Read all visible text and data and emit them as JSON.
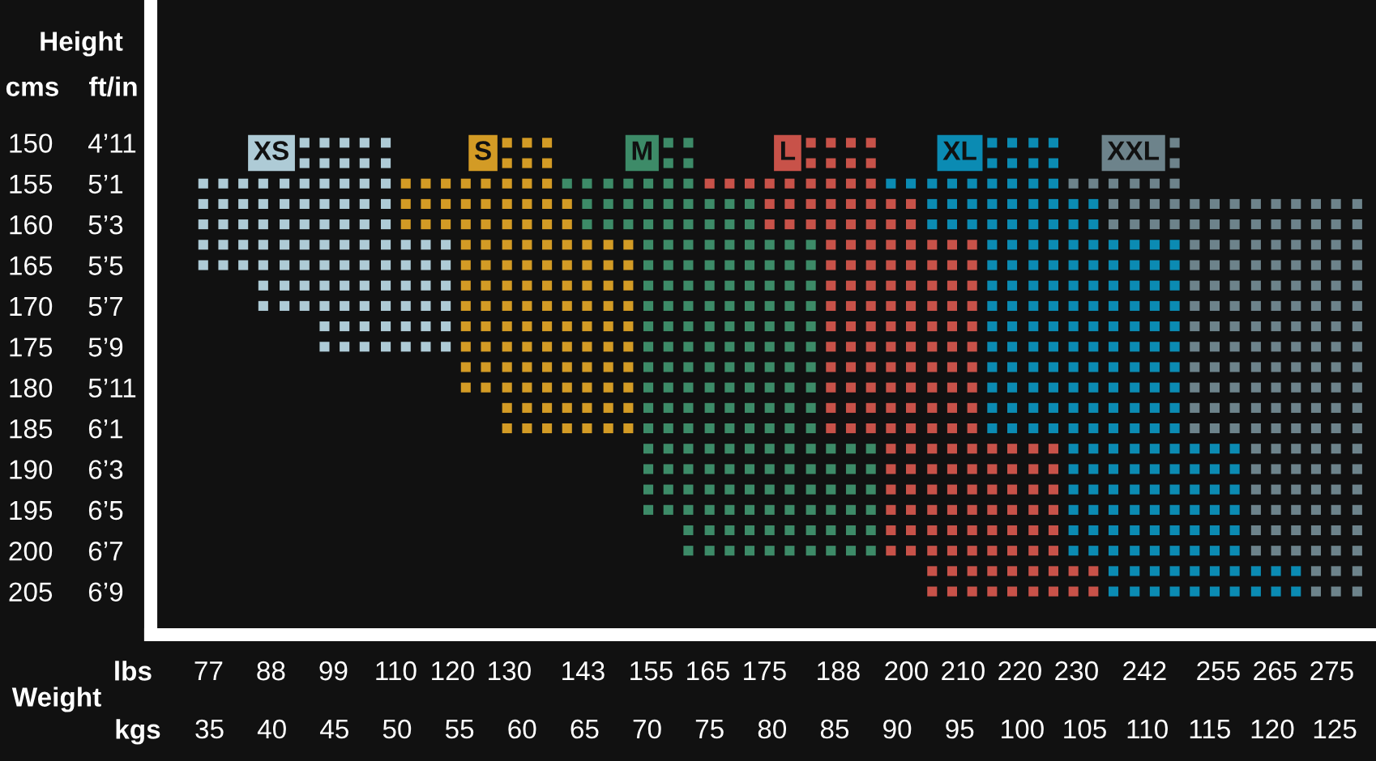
{
  "chart_data": {
    "type": "scatter",
    "marker": "square",
    "xlabel": "kgs",
    "x2label": "lbs",
    "ylabel": "cms",
    "y2label": "ft/in",
    "annotations": [
      "Height",
      "Weight"
    ],
    "xlim": [
      30.3,
      128.3
    ],
    "xticks": [
      35,
      40,
      45,
      50,
      55,
      60,
      65,
      70,
      75,
      80,
      85,
      90,
      95,
      100,
      105,
      110,
      115,
      120,
      125
    ],
    "x2lim": [
      66.8,
      282.8
    ],
    "x2ticks": [
      77,
      88,
      99,
      110,
      120,
      130,
      143,
      155,
      165,
      175,
      188,
      200,
      210,
      220,
      230,
      242,
      255,
      265,
      275
    ],
    "ylim": [
      210.3,
      132.5
    ],
    "yticks": [
      150,
      155,
      160,
      165,
      170,
      175,
      180,
      185,
      190,
      195,
      200,
      205
    ],
    "y2_categories": [
      "4’11",
      "5’1",
      "5’3",
      "5’5",
      "5’7",
      "5’9",
      "5’11",
      "6’1",
      "6’3",
      "6’5",
      "6’7",
      "6’9"
    ],
    "series": [
      {
        "name": "XS",
        "color": "#aecbd6",
        "x": [
          42.6,
          44.2,
          45.8,
          47.4,
          49.1,
          42.6,
          44.2,
          45.8,
          47.4,
          49.1,
          34.5,
          36.1,
          37.7,
          39.3,
          41.0,
          42.6,
          44.2,
          45.8,
          47.4,
          49.1,
          34.5,
          36.1,
          37.7,
          39.3,
          41.0,
          42.6,
          44.2,
          45.8,
          47.4,
          49.1,
          34.5,
          36.1,
          37.7,
          39.3,
          41.0,
          42.6,
          44.2,
          45.8,
          47.4,
          49.1,
          34.5,
          36.1,
          37.7,
          39.3,
          41.0,
          42.6,
          44.2,
          45.8,
          47.4,
          49.1,
          50.7,
          52.3,
          53.9,
          34.5,
          36.1,
          37.7,
          39.3,
          41.0,
          42.6,
          44.2,
          45.8,
          47.4,
          49.1,
          50.7,
          52.3,
          53.9,
          39.3,
          41.0,
          42.6,
          44.2,
          45.8,
          47.4,
          49.1,
          50.7,
          52.3,
          53.9,
          39.3,
          41.0,
          42.6,
          44.2,
          45.8,
          47.4,
          49.1,
          50.7,
          52.3,
          53.9,
          44.2,
          45.8,
          47.4,
          49.1,
          50.7,
          52.3,
          53.9,
          44.2,
          45.8,
          47.4,
          49.1,
          50.7,
          52.3,
          53.9
        ],
        "values": [
          150,
          150,
          150,
          150,
          150,
          152.5,
          152.5,
          152.5,
          152.5,
          152.5,
          155,
          155,
          155,
          155,
          155,
          155,
          155,
          155,
          155,
          155,
          157.5,
          157.5,
          157.5,
          157.5,
          157.5,
          157.5,
          157.5,
          157.5,
          157.5,
          157.5,
          160,
          160,
          160,
          160,
          160,
          160,
          160,
          160,
          160,
          160,
          162.5,
          162.5,
          162.5,
          162.5,
          162.5,
          162.5,
          162.5,
          162.5,
          162.5,
          162.5,
          162.5,
          162.5,
          162.5,
          165,
          165,
          165,
          165,
          165,
          165,
          165,
          165,
          165,
          165,
          165,
          165,
          165,
          167.5,
          167.5,
          167.5,
          167.5,
          167.5,
          167.5,
          167.5,
          167.5,
          167.5,
          167.5,
          170,
          170,
          170,
          170,
          170,
          170,
          170,
          170,
          170,
          170,
          172.5,
          172.5,
          172.5,
          172.5,
          172.5,
          172.5,
          172.5,
          175,
          175,
          175,
          175,
          175,
          175,
          175
        ]
      },
      {
        "name": "S",
        "color": "#d39b25",
        "x": [
          58.8,
          60.4,
          62.0,
          58.8,
          60.4,
          62.0,
          50.7,
          52.3,
          53.9,
          55.5,
          57.1,
          58.8,
          60.4,
          62.0,
          50.7,
          52.3,
          53.9,
          55.5,
          57.1,
          58.8,
          60.4,
          62.0,
          63.6,
          50.7,
          52.3,
          53.9,
          55.5,
          57.1,
          58.8,
          60.4,
          62.0,
          63.6,
          55.5,
          57.1,
          58.8,
          60.4,
          62.0,
          63.6,
          65.2,
          66.9,
          68.5,
          55.5,
          57.1,
          58.8,
          60.4,
          62.0,
          63.6,
          65.2,
          66.9,
          68.5,
          55.5,
          57.1,
          58.8,
          60.4,
          62.0,
          63.6,
          65.2,
          66.9,
          68.5,
          55.5,
          57.1,
          58.8,
          60.4,
          62.0,
          63.6,
          65.2,
          66.9,
          68.5,
          55.5,
          57.1,
          58.8,
          60.4,
          62.0,
          63.6,
          65.2,
          66.9,
          68.5,
          55.5,
          57.1,
          58.8,
          60.4,
          62.0,
          63.6,
          65.2,
          66.9,
          68.5,
          55.5,
          57.1,
          58.8,
          60.4,
          62.0,
          63.6,
          65.2,
          66.9,
          68.5,
          55.5,
          57.1,
          58.8,
          60.4,
          62.0,
          63.6,
          65.2,
          66.9,
          68.5,
          58.8,
          60.4,
          62.0,
          63.6,
          65.2,
          66.9,
          68.5,
          58.8,
          60.4,
          62.0,
          63.6,
          65.2,
          66.9,
          68.5
        ],
        "values": [
          150,
          150,
          150,
          152.5,
          152.5,
          152.5,
          155,
          155,
          155,
          155,
          155,
          155,
          155,
          155,
          157.5,
          157.5,
          157.5,
          157.5,
          157.5,
          157.5,
          157.5,
          157.5,
          157.5,
          160,
          160,
          160,
          160,
          160,
          160,
          160,
          160,
          160,
          162.5,
          162.5,
          162.5,
          162.5,
          162.5,
          162.5,
          162.5,
          162.5,
          162.5,
          165,
          165,
          165,
          165,
          165,
          165,
          165,
          165,
          165,
          167.5,
          167.5,
          167.5,
          167.5,
          167.5,
          167.5,
          167.5,
          167.5,
          167.5,
          170,
          170,
          170,
          170,
          170,
          170,
          170,
          170,
          170,
          172.5,
          172.5,
          172.5,
          172.5,
          172.5,
          172.5,
          172.5,
          172.5,
          172.5,
          175,
          175,
          175,
          175,
          175,
          175,
          175,
          175,
          175,
          177.5,
          177.5,
          177.5,
          177.5,
          177.5,
          177.5,
          177.5,
          177.5,
          177.5,
          180,
          180,
          180,
          180,
          180,
          180,
          180,
          180,
          180,
          182.5,
          182.5,
          182.5,
          182.5,
          182.5,
          182.5,
          182.5,
          185,
          185,
          185,
          185,
          185,
          185,
          185
        ]
      },
      {
        "name": "M",
        "color": "#3d8b68",
        "x": [
          71.7,
          73.3,
          71.7,
          73.3,
          63.6,
          65.2,
          66.9,
          68.5,
          70.1,
          71.7,
          73.3,
          65.2,
          66.9,
          68.5,
          70.1,
          71.7,
          73.3,
          75.0,
          76.6,
          78.2,
          65.2,
          66.9,
          68.5,
          70.1,
          71.7,
          73.3,
          75.0,
          76.6,
          78.2,
          70.1,
          71.7,
          73.3,
          75.0,
          76.6,
          78.2,
          79.8,
          81.4,
          83.1,
          70.1,
          71.7,
          73.3,
          75.0,
          76.6,
          78.2,
          79.8,
          81.4,
          83.1,
          70.1,
          71.7,
          73.3,
          75.0,
          76.6,
          78.2,
          79.8,
          81.4,
          83.1,
          70.1,
          71.7,
          73.3,
          75.0,
          76.6,
          78.2,
          79.8,
          81.4,
          83.1,
          70.1,
          71.7,
          73.3,
          75.0,
          76.6,
          78.2,
          79.8,
          81.4,
          83.1,
          70.1,
          71.7,
          73.3,
          75.0,
          76.6,
          78.2,
          79.8,
          81.4,
          83.1,
          70.1,
          71.7,
          73.3,
          75.0,
          76.6,
          78.2,
          79.8,
          81.4,
          83.1,
          70.1,
          71.7,
          73.3,
          75.0,
          76.6,
          78.2,
          79.8,
          81.4,
          83.1,
          70.1,
          71.7,
          73.3,
          75.0,
          76.6,
          78.2,
          79.8,
          81.4,
          83.1,
          70.1,
          71.7,
          73.3,
          75.0,
          76.6,
          78.2,
          79.8,
          81.4,
          83.1,
          70.1,
          71.7,
          73.3,
          75.0,
          76.6,
          78.2,
          79.8,
          81.4,
          83.1,
          84.7,
          86.3,
          87.9,
          70.1,
          71.7,
          73.3,
          75.0,
          76.6,
          78.2,
          79.8,
          81.4,
          83.1,
          84.7,
          86.3,
          87.9,
          70.1,
          71.7,
          73.3,
          75.0,
          76.6,
          78.2,
          79.8,
          81.4,
          83.1,
          84.7,
          86.3,
          87.9,
          70.1,
          71.7,
          73.3,
          75.0,
          76.6,
          78.2,
          79.8,
          81.4,
          83.1,
          84.7,
          86.3,
          87.9,
          73.3,
          75.0,
          76.6,
          78.2,
          79.8,
          81.4,
          83.1,
          84.7,
          86.3,
          87.9,
          73.3,
          75.0,
          76.6,
          78.2,
          79.8,
          81.4,
          83.1,
          84.7,
          86.3,
          87.9
        ],
        "values": [
          150,
          150,
          152.5,
          152.5,
          155,
          155,
          155,
          155,
          155,
          155,
          155,
          157.5,
          157.5,
          157.5,
          157.5,
          157.5,
          157.5,
          157.5,
          157.5,
          157.5,
          160,
          160,
          160,
          160,
          160,
          160,
          160,
          160,
          160,
          162.5,
          162.5,
          162.5,
          162.5,
          162.5,
          162.5,
          162.5,
          162.5,
          162.5,
          165,
          165,
          165,
          165,
          165,
          165,
          165,
          165,
          165,
          167.5,
          167.5,
          167.5,
          167.5,
          167.5,
          167.5,
          167.5,
          167.5,
          167.5,
          170,
          170,
          170,
          170,
          170,
          170,
          170,
          170,
          170,
          172.5,
          172.5,
          172.5,
          172.5,
          172.5,
          172.5,
          172.5,
          172.5,
          172.5,
          175,
          175,
          175,
          175,
          175,
          175,
          175,
          175,
          175,
          177.5,
          177.5,
          177.5,
          177.5,
          177.5,
          177.5,
          177.5,
          177.5,
          177.5,
          180,
          180,
          180,
          180,
          180,
          180,
          180,
          180,
          180,
          182.5,
          182.5,
          182.5,
          182.5,
          182.5,
          182.5,
          182.5,
          182.5,
          182.5,
          185,
          185,
          185,
          185,
          185,
          185,
          185,
          185,
          185,
          187.5,
          187.5,
          187.5,
          187.5,
          187.5,
          187.5,
          187.5,
          187.5,
          187.5,
          187.5,
          187.5,
          187.5,
          190,
          190,
          190,
          190,
          190,
          190,
          190,
          190,
          190,
          190,
          190,
          190,
          192.5,
          192.5,
          192.5,
          192.5,
          192.5,
          192.5,
          192.5,
          192.5,
          192.5,
          192.5,
          192.5,
          192.5,
          195,
          195,
          195,
          195,
          195,
          195,
          195,
          195,
          195,
          195,
          195,
          195,
          197.5,
          197.5,
          197.5,
          197.5,
          197.5,
          197.5,
          197.5,
          197.5,
          197.5,
          197.5,
          200,
          200,
          200,
          200,
          200,
          200,
          200,
          200,
          200,
          200
        ]
      },
      {
        "name": "L",
        "color": "#c85249",
        "x": [
          83.1,
          84.7,
          86.3,
          87.9,
          83.1,
          84.7,
          86.3,
          87.9,
          75.0,
          76.6,
          78.2,
          79.8,
          81.4,
          83.1,
          84.7,
          86.3,
          87.9,
          79.8,
          81.4,
          83.1,
          84.7,
          86.3,
          87.9,
          89.5,
          91.1,
          79.8,
          81.4,
          83.1,
          84.7,
          86.3,
          87.9,
          89.5,
          91.1,
          84.7,
          86.3,
          87.9,
          89.5,
          91.1,
          92.8,
          94.4,
          96.0,
          84.7,
          86.3,
          87.9,
          89.5,
          91.1,
          92.8,
          94.4,
          96.0,
          84.7,
          86.3,
          87.9,
          89.5,
          91.1,
          92.8,
          94.4,
          96.0,
          84.7,
          86.3,
          87.9,
          89.5,
          91.1,
          92.8,
          94.4,
          96.0,
          84.7,
          86.3,
          87.9,
          89.5,
          91.1,
          92.8,
          94.4,
          96.0,
          84.7,
          86.3,
          87.9,
          89.5,
          91.1,
          92.8,
          94.4,
          96.0,
          84.7,
          86.3,
          87.9,
          89.5,
          91.1,
          92.8,
          94.4,
          96.0,
          84.7,
          86.3,
          87.9,
          89.5,
          91.1,
          92.8,
          94.4,
          96.0,
          84.7,
          86.3,
          87.9,
          89.5,
          91.1,
          92.8,
          94.4,
          96.0,
          84.7,
          86.3,
          87.9,
          89.5,
          91.1,
          92.8,
          94.4,
          96.0,
          89.5,
          91.1,
          92.8,
          94.4,
          96.0,
          97.6,
          99.2,
          100.9,
          102.5,
          89.5,
          91.1,
          92.8,
          94.4,
          96.0,
          97.6,
          99.2,
          100.9,
          102.5,
          89.5,
          91.1,
          92.8,
          94.4,
          96.0,
          97.6,
          99.2,
          100.9,
          102.5,
          89.5,
          91.1,
          92.8,
          94.4,
          96.0,
          97.6,
          99.2,
          100.9,
          102.5,
          89.5,
          91.1,
          92.8,
          94.4,
          96.0,
          97.6,
          99.2,
          100.9,
          102.5,
          89.5,
          91.1,
          92.8,
          94.4,
          96.0,
          97.6,
          99.2,
          100.9,
          102.5,
          92.8,
          94.4,
          96.0,
          97.6,
          99.2,
          100.9,
          102.5,
          104.1,
          105.7,
          92.8,
          94.4,
          96.0,
          97.6,
          99.2,
          100.9,
          102.5,
          104.1,
          105.7
        ],
        "values": [
          150,
          150,
          150,
          150,
          152.5,
          152.5,
          152.5,
          152.5,
          155,
          155,
          155,
          155,
          155,
          155,
          155,
          155,
          155,
          157.5,
          157.5,
          157.5,
          157.5,
          157.5,
          157.5,
          157.5,
          157.5,
          160,
          160,
          160,
          160,
          160,
          160,
          160,
          160,
          162.5,
          162.5,
          162.5,
          162.5,
          162.5,
          162.5,
          162.5,
          162.5,
          165,
          165,
          165,
          165,
          165,
          165,
          165,
          165,
          167.5,
          167.5,
          167.5,
          167.5,
          167.5,
          167.5,
          167.5,
          167.5,
          170,
          170,
          170,
          170,
          170,
          170,
          170,
          170,
          172.5,
          172.5,
          172.5,
          172.5,
          172.5,
          172.5,
          172.5,
          172.5,
          175,
          175,
          175,
          175,
          175,
          175,
          175,
          175,
          177.5,
          177.5,
          177.5,
          177.5,
          177.5,
          177.5,
          177.5,
          177.5,
          180,
          180,
          180,
          180,
          180,
          180,
          180,
          180,
          182.5,
          182.5,
          182.5,
          182.5,
          182.5,
          182.5,
          182.5,
          182.5,
          185,
          185,
          185,
          185,
          185,
          185,
          185,
          185,
          187.5,
          187.5,
          187.5,
          187.5,
          187.5,
          187.5,
          187.5,
          187.5,
          187.5,
          190,
          190,
          190,
          190,
          190,
          190,
          190,
          190,
          190,
          192.5,
          192.5,
          192.5,
          192.5,
          192.5,
          192.5,
          192.5,
          192.5,
          192.5,
          195,
          195,
          195,
          195,
          195,
          195,
          195,
          195,
          195,
          197.5,
          197.5,
          197.5,
          197.5,
          197.5,
          197.5,
          197.5,
          197.5,
          197.5,
          200,
          200,
          200,
          200,
          200,
          200,
          200,
          200,
          200,
          202.5,
          202.5,
          202.5,
          202.5,
          202.5,
          202.5,
          202.5,
          202.5,
          202.5,
          205,
          205,
          205,
          205,
          205,
          205,
          205,
          205,
          205
        ]
      },
      {
        "name": "XL",
        "color": "#0b8bb3",
        "x": [
          97.6,
          99.2,
          100.9,
          102.5,
          97.6,
          99.2,
          100.9,
          102.5,
          89.5,
          91.1,
          92.8,
          94.4,
          96.0,
          97.6,
          99.2,
          100.9,
          102.5,
          92.8,
          94.4,
          96.0,
          97.6,
          99.2,
          100.9,
          102.5,
          104.1,
          105.7,
          92.8,
          94.4,
          96.0,
          97.6,
          99.2,
          100.9,
          102.5,
          104.1,
          105.7,
          97.6,
          99.2,
          100.9,
          102.5,
          104.1,
          105.7,
          107.3,
          109.0,
          110.6,
          112.2,
          97.6,
          99.2,
          100.9,
          102.5,
          104.1,
          105.7,
          107.3,
          109.0,
          110.6,
          112.2,
          97.6,
          99.2,
          100.9,
          102.5,
          104.1,
          105.7,
          107.3,
          109.0,
          110.6,
          112.2,
          97.6,
          99.2,
          100.9,
          102.5,
          104.1,
          105.7,
          107.3,
          109.0,
          110.6,
          112.2,
          97.6,
          99.2,
          100.9,
          102.5,
          104.1,
          105.7,
          107.3,
          109.0,
          110.6,
          112.2,
          97.6,
          99.2,
          100.9,
          102.5,
          104.1,
          105.7,
          107.3,
          109.0,
          110.6,
          112.2,
          97.6,
          99.2,
          100.9,
          102.5,
          104.1,
          105.7,
          107.3,
          109.0,
          110.6,
          112.2,
          97.6,
          99.2,
          100.9,
          102.5,
          104.1,
          105.7,
          107.3,
          109.0,
          110.6,
          112.2,
          97.6,
          99.2,
          100.9,
          102.5,
          104.1,
          105.7,
          107.3,
          109.0,
          110.6,
          112.2,
          97.6,
          99.2,
          100.9,
          102.5,
          104.1,
          105.7,
          107.3,
          109.0,
          110.6,
          112.2,
          104.1,
          105.7,
          107.3,
          109.0,
          110.6,
          112.2,
          113.8,
          115.4,
          117.0,
          104.1,
          105.7,
          107.3,
          109.0,
          110.6,
          112.2,
          113.8,
          115.4,
          117.0,
          104.1,
          105.7,
          107.3,
          109.0,
          110.6,
          112.2,
          113.8,
          115.4,
          117.0,
          104.1,
          105.7,
          107.3,
          109.0,
          110.6,
          112.2,
          113.8,
          115.4,
          117.0,
          104.1,
          105.7,
          107.3,
          109.0,
          110.6,
          112.2,
          113.8,
          115.4,
          117.0,
          104.1,
          105.7,
          107.3,
          109.0,
          110.6,
          112.2,
          113.8,
          115.4,
          117.0,
          107.3,
          109.0,
          110.6,
          112.2,
          113.8,
          115.4,
          117.0,
          118.7,
          120.3,
          121.9,
          107.3,
          109.0,
          110.6,
          112.2,
          113.8,
          115.4,
          117.0,
          118.7,
          120.3,
          121.9
        ],
        "values": [
          150,
          150,
          150,
          150,
          152.5,
          152.5,
          152.5,
          152.5,
          155,
          155,
          155,
          155,
          155,
          155,
          155,
          155,
          155,
          157.5,
          157.5,
          157.5,
          157.5,
          157.5,
          157.5,
          157.5,
          157.5,
          157.5,
          160,
          160,
          160,
          160,
          160,
          160,
          160,
          160,
          160,
          162.5,
          162.5,
          162.5,
          162.5,
          162.5,
          162.5,
          162.5,
          162.5,
          162.5,
          162.5,
          165,
          165,
          165,
          165,
          165,
          165,
          165,
          165,
          165,
          165,
          167.5,
          167.5,
          167.5,
          167.5,
          167.5,
          167.5,
          167.5,
          167.5,
          167.5,
          167.5,
          170,
          170,
          170,
          170,
          170,
          170,
          170,
          170,
          170,
          170,
          172.5,
          172.5,
          172.5,
          172.5,
          172.5,
          172.5,
          172.5,
          172.5,
          172.5,
          172.5,
          175,
          175,
          175,
          175,
          175,
          175,
          175,
          175,
          175,
          175,
          177.5,
          177.5,
          177.5,
          177.5,
          177.5,
          177.5,
          177.5,
          177.5,
          177.5,
          177.5,
          180,
          180,
          180,
          180,
          180,
          180,
          180,
          180,
          180,
          180,
          182.5,
          182.5,
          182.5,
          182.5,
          182.5,
          182.5,
          182.5,
          182.5,
          182.5,
          182.5,
          185,
          185,
          185,
          185,
          185,
          185,
          185,
          185,
          185,
          185,
          187.5,
          187.5,
          187.5,
          187.5,
          187.5,
          187.5,
          187.5,
          187.5,
          187.5,
          190,
          190,
          190,
          190,
          190,
          190,
          190,
          190,
          190,
          192.5,
          192.5,
          192.5,
          192.5,
          192.5,
          192.5,
          192.5,
          192.5,
          192.5,
          195,
          195,
          195,
          195,
          195,
          195,
          195,
          195,
          195,
          197.5,
          197.5,
          197.5,
          197.5,
          197.5,
          197.5,
          197.5,
          197.5,
          197.5,
          200,
          200,
          200,
          200,
          200,
          200,
          200,
          200,
          200,
          202.5,
          202.5,
          202.5,
          202.5,
          202.5,
          202.5,
          202.5,
          202.5,
          202.5,
          202.5,
          205,
          205,
          205,
          205,
          205,
          205,
          205,
          205,
          205,
          205
        ]
      },
      {
        "name": "XXL",
        "color": "#6d838b",
        "x": [
          112.2,
          112.2,
          104.1,
          105.7,
          107.3,
          109.0,
          110.6,
          112.2,
          107.3,
          109.0,
          110.6,
          112.2,
          113.8,
          115.4,
          117.0,
          118.7,
          120.3,
          121.9,
          123.5,
          125.1,
          126.8,
          107.3,
          109.0,
          110.6,
          112.2,
          113.8,
          115.4,
          117.0,
          118.7,
          120.3,
          121.9,
          123.5,
          125.1,
          126.8,
          113.8,
          115.4,
          117.0,
          118.7,
          120.3,
          121.9,
          123.5,
          125.1,
          126.8,
          113.8,
          115.4,
          117.0,
          118.7,
          120.3,
          121.9,
          123.5,
          125.1,
          126.8,
          113.8,
          115.4,
          117.0,
          118.7,
          120.3,
          121.9,
          123.5,
          125.1,
          126.8,
          113.8,
          115.4,
          117.0,
          118.7,
          120.3,
          121.9,
          123.5,
          125.1,
          126.8,
          113.8,
          115.4,
          117.0,
          118.7,
          120.3,
          121.9,
          123.5,
          125.1,
          126.8,
          113.8,
          115.4,
          117.0,
          118.7,
          120.3,
          121.9,
          123.5,
          125.1,
          126.8,
          113.8,
          115.4,
          117.0,
          118.7,
          120.3,
          121.9,
          123.5,
          125.1,
          126.8,
          113.8,
          115.4,
          117.0,
          118.7,
          120.3,
          121.9,
          123.5,
          125.1,
          126.8,
          113.8,
          115.4,
          117.0,
          118.7,
          120.3,
          121.9,
          123.5,
          125.1,
          126.8,
          113.8,
          115.4,
          117.0,
          118.7,
          120.3,
          121.9,
          123.5,
          125.1,
          126.8,
          118.7,
          120.3,
          121.9,
          123.5,
          125.1,
          126.8,
          118.7,
          120.3,
          121.9,
          123.5,
          125.1,
          126.8,
          118.7,
          120.3,
          121.9,
          123.5,
          125.1,
          126.8,
          118.7,
          120.3,
          121.9,
          123.5,
          125.1,
          126.8,
          118.7,
          120.3,
          121.9,
          123.5,
          125.1,
          126.8,
          118.7,
          120.3,
          121.9,
          123.5,
          125.1,
          126.8,
          123.5,
          125.1,
          126.8,
          123.5,
          125.1,
          126.8
        ],
        "values": [
          150,
          152.5,
          155,
          155,
          155,
          155,
          155,
          155,
          157.5,
          157.5,
          157.5,
          157.5,
          157.5,
          157.5,
          157.5,
          157.5,
          157.5,
          157.5,
          157.5,
          157.5,
          157.5,
          160,
          160,
          160,
          160,
          160,
          160,
          160,
          160,
          160,
          160,
          160,
          160,
          160,
          162.5,
          162.5,
          162.5,
          162.5,
          162.5,
          162.5,
          162.5,
          162.5,
          162.5,
          165,
          165,
          165,
          165,
          165,
          165,
          165,
          165,
          165,
          167.5,
          167.5,
          167.5,
          167.5,
          167.5,
          167.5,
          167.5,
          167.5,
          167.5,
          170,
          170,
          170,
          170,
          170,
          170,
          170,
          170,
          170,
          172.5,
          172.5,
          172.5,
          172.5,
          172.5,
          172.5,
          172.5,
          172.5,
          172.5,
          175,
          175,
          175,
          175,
          175,
          175,
          175,
          175,
          175,
          177.5,
          177.5,
          177.5,
          177.5,
          177.5,
          177.5,
          177.5,
          177.5,
          177.5,
          180,
          180,
          180,
          180,
          180,
          180,
          180,
          180,
          180,
          182.5,
          182.5,
          182.5,
          182.5,
          182.5,
          182.5,
          182.5,
          182.5,
          182.5,
          185,
          185,
          185,
          185,
          185,
          185,
          185,
          185,
          185,
          187.5,
          187.5,
          187.5,
          187.5,
          187.5,
          187.5,
          190,
          190,
          190,
          190,
          190,
          190,
          192.5,
          192.5,
          192.5,
          192.5,
          192.5,
          192.5,
          195,
          195,
          195,
          195,
          195,
          195,
          197.5,
          197.5,
          197.5,
          197.5,
          197.5,
          197.5,
          200,
          200,
          200,
          200,
          200,
          200,
          202.5,
          202.5,
          202.5,
          205,
          205,
          205
        ]
      }
    ]
  }
}
